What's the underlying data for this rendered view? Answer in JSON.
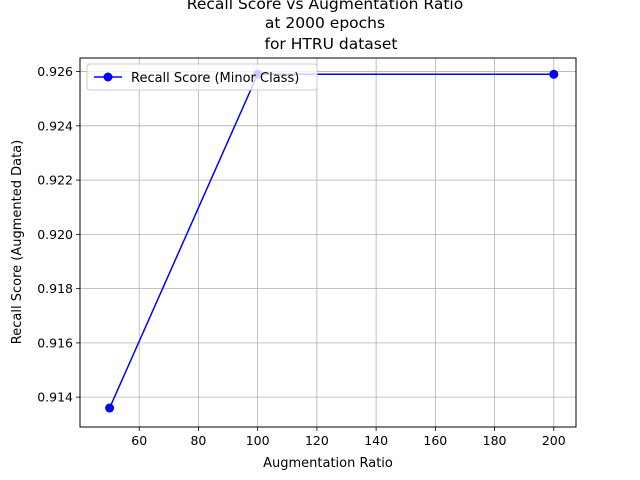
{
  "chart_data": {
    "type": "line",
    "title": [
      "Recall Score vs Augmentation Ratio",
      "at 2000 epochs",
      "for HTRU dataset"
    ],
    "xlabel": "Augmentation Ratio",
    "ylabel": "Recall Score (Augmented Data)",
    "xlim": [
      40,
      207.5
    ],
    "ylim": [
      0.9129,
      0.9265
    ],
    "xticks": [
      60,
      80,
      100,
      120,
      140,
      160,
      180,
      200
    ],
    "xtick_labels": [
      "60",
      "80",
      "100",
      "120",
      "140",
      "160",
      "180",
      "200"
    ],
    "yticks": [
      0.914,
      0.916,
      0.918,
      0.92,
      0.922,
      0.924,
      0.926
    ],
    "ytick_labels": [
      "0.914",
      "0.916",
      "0.918",
      "0.920",
      "0.922",
      "0.924",
      "0.926"
    ],
    "grid": true,
    "legend_position": "top-left",
    "series": [
      {
        "name": "Recall Score (Minor Class)",
        "color": "#0000ff",
        "marker": "circle",
        "x": [
          50,
          100,
          200
        ],
        "y": [
          0.9136,
          0.9259,
          0.9259
        ]
      }
    ]
  }
}
